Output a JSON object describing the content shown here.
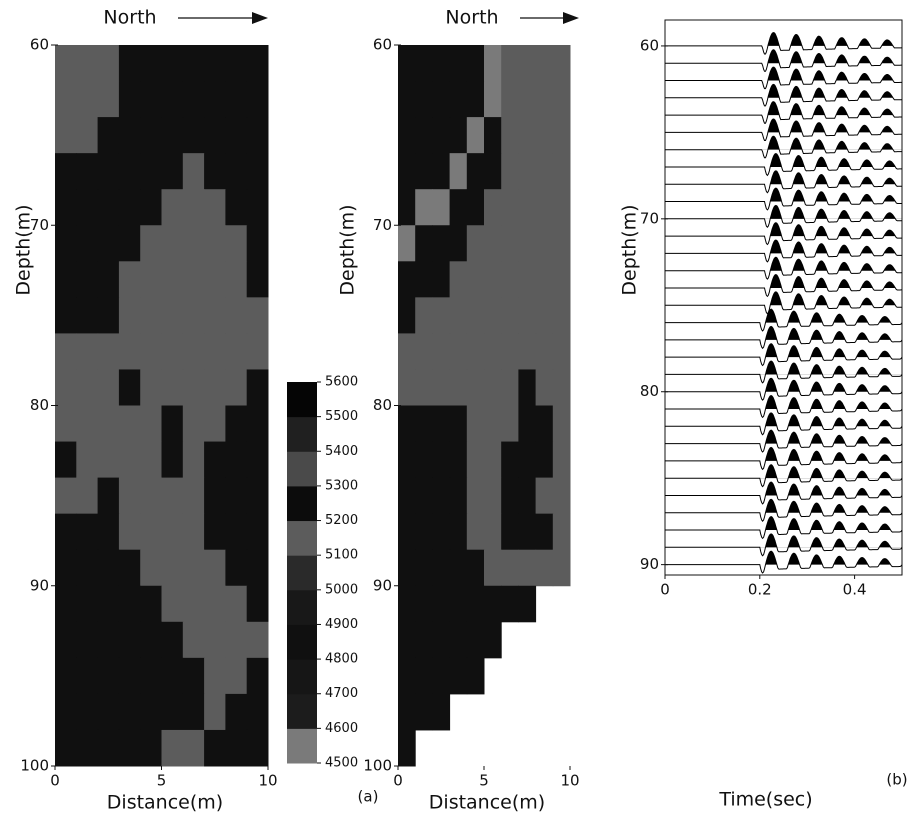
{
  "chart_data": [
    {
      "type": "heatmap",
      "title": "North",
      "x_label": "Distance(m)",
      "y_label": "Depth(m)",
      "panel_label": "(a)",
      "xlim": [
        0,
        10
      ],
      "xticks": [
        0,
        5,
        10
      ],
      "ylim": [
        60,
        100
      ],
      "yticks": [
        60,
        70,
        80,
        90,
        100
      ],
      "y_reversed": true,
      "x_bins": [
        0,
        1,
        2,
        3,
        4,
        5,
        6,
        7,
        8,
        9,
        10
      ],
      "y_bins": [
        60,
        62,
        64,
        66,
        68,
        70,
        72,
        74,
        76,
        78,
        80,
        82,
        84,
        86,
        88,
        90,
        92,
        94,
        96,
        98,
        100
      ],
      "values": [
        [
          5150,
          5150,
          5150,
          4850,
          4850,
          4850,
          4850,
          4850,
          4850,
          4850
        ],
        [
          5150,
          5150,
          5150,
          4850,
          4850,
          4850,
          4850,
          4850,
          4850,
          4850
        ],
        [
          5150,
          5150,
          4850,
          4850,
          4850,
          4850,
          4850,
          4850,
          4850,
          4850
        ],
        [
          4850,
          4850,
          4850,
          4850,
          4850,
          4850,
          5150,
          4850,
          4850,
          4850
        ],
        [
          4850,
          4850,
          4850,
          4850,
          4850,
          5150,
          5150,
          5150,
          4850,
          4850
        ],
        [
          4850,
          4850,
          4850,
          4850,
          5150,
          5150,
          5150,
          5150,
          5150,
          4850
        ],
        [
          4850,
          4850,
          4850,
          5150,
          5150,
          5150,
          5150,
          5150,
          5150,
          4850
        ],
        [
          4850,
          4850,
          4850,
          5150,
          5150,
          5150,
          5150,
          5150,
          5150,
          5150
        ],
        [
          5150,
          5150,
          5150,
          5150,
          5150,
          5150,
          5150,
          5150,
          5150,
          5150
        ],
        [
          5150,
          5150,
          5150,
          4850,
          5150,
          5150,
          5150,
          5150,
          5150,
          4850
        ],
        [
          5150,
          5150,
          5150,
          5150,
          5150,
          4850,
          5150,
          5150,
          4850,
          4850
        ],
        [
          4850,
          5150,
          5150,
          5150,
          5150,
          4850,
          5150,
          4850,
          4850,
          4850
        ],
        [
          5150,
          5150,
          4850,
          5150,
          5150,
          5150,
          5150,
          4850,
          4850,
          4850
        ],
        [
          4850,
          4850,
          4850,
          5150,
          5150,
          5150,
          5150,
          4850,
          4850,
          4850
        ],
        [
          4850,
          4850,
          4850,
          4850,
          5150,
          5150,
          5150,
          5150,
          4850,
          4850
        ],
        [
          4850,
          4850,
          4850,
          4850,
          4850,
          5150,
          5150,
          5150,
          5150,
          4850
        ],
        [
          4850,
          4850,
          4850,
          4850,
          4850,
          4850,
          5150,
          5150,
          5150,
          5150
        ],
        [
          4850,
          4850,
          4850,
          4850,
          4850,
          4850,
          4850,
          5150,
          5150,
          4850
        ],
        [
          4850,
          4850,
          4850,
          4850,
          4850,
          4850,
          4850,
          5150,
          4850,
          4850
        ],
        [
          4850,
          4850,
          4850,
          4850,
          4850,
          5150,
          5150,
          4850,
          4850,
          4850
        ]
      ],
      "colorbar": {
        "ticks": [
          4500,
          4600,
          4700,
          4800,
          4900,
          5000,
          5100,
          5200,
          5300,
          5400,
          5500,
          5600
        ],
        "colors": [
          "#7a7a7a",
          "#1c1c1c",
          "#161616",
          "#101010",
          "#181818",
          "#2a2a2a",
          "#5c5c5c",
          "#0c0c0c",
          "#4a4a4a",
          "#202020",
          "#050505"
        ]
      }
    },
    {
      "type": "heatmap",
      "title": "North",
      "x_label": "Distance(m)",
      "y_label": "Depth(m)",
      "xlim": [
        0,
        10
      ],
      "xticks": [
        0,
        5,
        10
      ],
      "ylim": [
        60,
        100
      ],
      "yticks": [
        60,
        70,
        80,
        90,
        100
      ],
      "y_reversed": true,
      "x_bins": [
        0,
        1,
        2,
        3,
        4,
        5,
        6,
        7,
        8,
        9,
        10
      ],
      "y_bins": [
        60,
        62,
        64,
        66,
        68,
        70,
        72,
        74,
        76,
        78,
        80,
        82,
        84,
        86,
        88,
        90,
        92,
        94,
        96,
        98,
        100
      ],
      "values": [
        [
          4850,
          4850,
          4850,
          4850,
          4850,
          4550,
          5150,
          5150,
          5150,
          5150
        ],
        [
          4850,
          4850,
          4850,
          4850,
          4850,
          4550,
          5150,
          5150,
          5150,
          5150
        ],
        [
          4850,
          4850,
          4850,
          4850,
          4550,
          4850,
          5150,
          5150,
          5150,
          5150
        ],
        [
          4850,
          4850,
          4850,
          4550,
          4850,
          4850,
          5150,
          5150,
          5150,
          5150
        ],
        [
          4850,
          4550,
          4550,
          4850,
          4850,
          5150,
          5150,
          5150,
          5150,
          5150
        ],
        [
          4550,
          4850,
          4850,
          4850,
          5150,
          5150,
          5150,
          5150,
          5150,
          5150
        ],
        [
          4850,
          4850,
          4850,
          5150,
          5150,
          5150,
          5150,
          5150,
          5150,
          5150
        ],
        [
          4850,
          5150,
          5150,
          5150,
          5150,
          5150,
          5150,
          5150,
          5150,
          5150
        ],
        [
          5150,
          5150,
          5150,
          5150,
          5150,
          5150,
          5150,
          5150,
          5150,
          5150
        ],
        [
          5150,
          5150,
          5150,
          5150,
          5150,
          5150,
          5150,
          4850,
          5150,
          5150
        ],
        [
          4850,
          4850,
          4850,
          4850,
          5150,
          5150,
          5150,
          4850,
          4850,
          5150
        ],
        [
          4850,
          4850,
          4850,
          4850,
          5150,
          5150,
          4850,
          4850,
          4850,
          5150
        ],
        [
          4850,
          4850,
          4850,
          4850,
          5150,
          5150,
          4850,
          4850,
          5150,
          5150
        ],
        [
          4850,
          4850,
          4850,
          4850,
          5150,
          5150,
          4850,
          4850,
          4850,
          5150
        ],
        [
          4850,
          4850,
          4850,
          4850,
          4850,
          5150,
          5150,
          5150,
          5150,
          5150
        ],
        [
          4850,
          4850,
          4850,
          4850,
          4850,
          4850,
          4850,
          4850,
          null,
          null
        ],
        [
          4850,
          4850,
          4850,
          4850,
          4850,
          4850,
          null,
          null,
          null,
          null
        ],
        [
          4850,
          4850,
          4850,
          4850,
          4850,
          null,
          null,
          null,
          null,
          null
        ],
        [
          4850,
          4850,
          4850,
          null,
          null,
          null,
          null,
          null,
          null,
          null
        ],
        [
          4850,
          null,
          null,
          null,
          null,
          null,
          null,
          null,
          null,
          null
        ]
      ]
    },
    {
      "type": "wiggle",
      "x_label": "Time(sec)",
      "y_label": "Depth(m)",
      "panel_label": "(b)",
      "color": "#000000",
      "xlim": [
        0,
        0.5
      ],
      "xticks": [
        0,
        0.2,
        0.4
      ],
      "ylim": [
        58.5,
        90.6
      ],
      "yticks": [
        60,
        70,
        80,
        90
      ],
      "y_reversed": true,
      "depths": [
        60,
        61,
        62,
        63,
        64,
        65,
        66,
        67,
        68,
        69,
        70,
        71,
        72,
        73,
        74,
        75,
        76,
        77,
        78,
        79,
        80,
        81,
        82,
        83,
        84,
        85,
        86,
        87,
        88,
        89,
        90
      ],
      "values": [
        0.205,
        0.205,
        0.205,
        0.205,
        0.205,
        0.205,
        0.205,
        0.21,
        0.21,
        0.21,
        0.21,
        0.21,
        0.21,
        0.21,
        0.21,
        0.21,
        0.2,
        0.2,
        0.2,
        0.2,
        0.2,
        0.2,
        0.2,
        0.2,
        0.2,
        0.2,
        0.2,
        0.2,
        0.2,
        0.2,
        0.2
      ]
    }
  ]
}
